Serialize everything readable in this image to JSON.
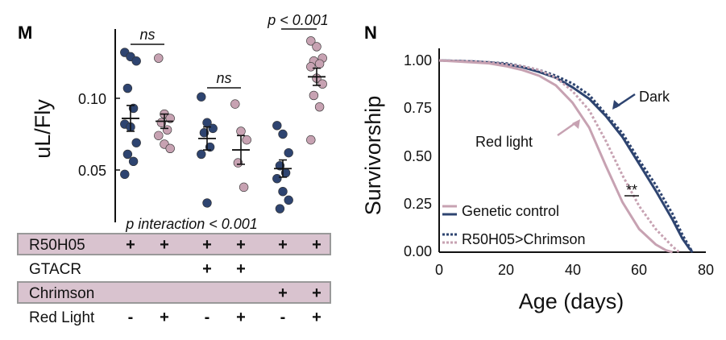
{
  "panel_m": {
    "label": "M",
    "chart_data": {
      "type": "scatter",
      "ylabel": "uL/Fly",
      "yticks": [
        "0.10",
        "0.05"
      ],
      "ylim": [
        0.02,
        0.145
      ],
      "colors": {
        "dark": "#2e4470",
        "light": "#c7a2b2"
      },
      "groups": [
        {
          "color": "dark",
          "mean": 0.086,
          "sem": 0.009,
          "values": [
            0.132,
            0.129,
            0.126,
            0.107,
            0.093,
            0.082,
            0.08,
            0.069,
            0.061,
            0.056,
            0.047
          ]
        },
        {
          "color": "light",
          "mean": 0.084,
          "sem": 0.005,
          "values": [
            0.128,
            0.089,
            0.086,
            0.083,
            0.078,
            0.074,
            0.068,
            0.065
          ]
        },
        {
          "color": "dark",
          "mean": 0.072,
          "sem": 0.008,
          "values": [
            0.101,
            0.083,
            0.079,
            0.076,
            0.066,
            0.061,
            0.027
          ]
        },
        {
          "color": "light",
          "mean": 0.064,
          "sem": 0.01,
          "values": [
            0.096,
            0.077,
            0.071,
            0.055,
            0.038
          ]
        },
        {
          "color": "dark",
          "mean": 0.051,
          "sem": 0.006,
          "values": [
            0.081,
            0.075,
            0.062,
            0.053,
            0.048,
            0.044,
            0.035,
            0.029,
            0.023
          ]
        },
        {
          "color": "light",
          "mean": 0.115,
          "sem": 0.006,
          "values": [
            0.14,
            0.136,
            0.128,
            0.126,
            0.124,
            0.122,
            0.114,
            0.11,
            0.102,
            0.094,
            0.071
          ]
        }
      ],
      "annotations": [
        {
          "text": "ns",
          "groups": [
            0,
            1
          ]
        },
        {
          "text": "ns",
          "groups": [
            2,
            3
          ]
        },
        {
          "text": "p < 0.001",
          "groups": [
            4,
            5
          ]
        }
      ],
      "interaction_text": "p interaction < 0.001"
    },
    "table": [
      {
        "label": "R50H05",
        "shaded": true,
        "values": [
          "+",
          "+",
          "+",
          "+",
          "+",
          "+"
        ]
      },
      {
        "label": "GTACR",
        "shaded": false,
        "values": [
          "",
          "",
          "+",
          "+",
          "",
          ""
        ]
      },
      {
        "label": "Chrimson",
        "shaded": true,
        "values": [
          "",
          "",
          "",
          "",
          "+",
          "+"
        ]
      },
      {
        "label": "Red Light",
        "shaded": false,
        "values": [
          "-",
          "+",
          "-",
          "+",
          "-",
          "+"
        ]
      }
    ]
  },
  "panel_n": {
    "label": "N",
    "chart_data": {
      "type": "line",
      "xlabel": "Age (days)",
      "ylabel": "Survivorship",
      "xlim": [
        0,
        80
      ],
      "ylim": [
        0,
        1
      ],
      "xticks": [
        "0",
        "20",
        "40",
        "60",
        "80"
      ],
      "yticks": [
        "0.00",
        "0.25",
        "0.50",
        "0.75",
        "1.00"
      ],
      "series": [
        {
          "color": "#2e4470",
          "dash": false,
          "x": [
            0,
            10,
            15,
            20,
            25,
            30,
            35,
            40,
            45,
            50,
            55,
            60,
            65,
            70,
            73,
            75,
            76
          ],
          "y": [
            1.0,
            0.995,
            0.99,
            0.98,
            0.965,
            0.94,
            0.91,
            0.86,
            0.8,
            0.71,
            0.6,
            0.46,
            0.32,
            0.17,
            0.07,
            0.02,
            0.0
          ]
        },
        {
          "color": "#2e4470",
          "dash": true,
          "x": [
            0,
            10,
            15,
            20,
            25,
            30,
            35,
            40,
            45,
            50,
            55,
            60,
            65,
            70,
            73,
            75,
            76
          ],
          "y": [
            1.0,
            0.995,
            0.99,
            0.985,
            0.97,
            0.95,
            0.92,
            0.88,
            0.82,
            0.72,
            0.62,
            0.48,
            0.35,
            0.2,
            0.09,
            0.03,
            0.0
          ]
        },
        {
          "color": "#c7a2b2",
          "dash": false,
          "x": [
            0,
            10,
            15,
            20,
            25,
            30,
            35,
            40,
            45,
            50,
            55,
            60,
            65,
            68,
            70
          ],
          "y": [
            1.0,
            0.99,
            0.985,
            0.97,
            0.95,
            0.92,
            0.87,
            0.78,
            0.65,
            0.45,
            0.26,
            0.12,
            0.04,
            0.01,
            0.0
          ]
        },
        {
          "color": "#c7a2b2",
          "dash": true,
          "x": [
            0,
            10,
            15,
            20,
            25,
            30,
            35,
            40,
            45,
            50,
            55,
            60,
            65,
            70,
            72
          ],
          "y": [
            1.0,
            0.995,
            0.99,
            0.98,
            0.97,
            0.95,
            0.91,
            0.84,
            0.74,
            0.58,
            0.4,
            0.24,
            0.12,
            0.03,
            0.0
          ]
        }
      ],
      "legend": [
        {
          "label": "Genetic control"
        },
        {
          "label": "R50H05>Chrimson"
        }
      ],
      "annotations": [
        {
          "text": "Dark"
        },
        {
          "text": "Red light"
        },
        {
          "text": "**"
        }
      ]
    }
  }
}
